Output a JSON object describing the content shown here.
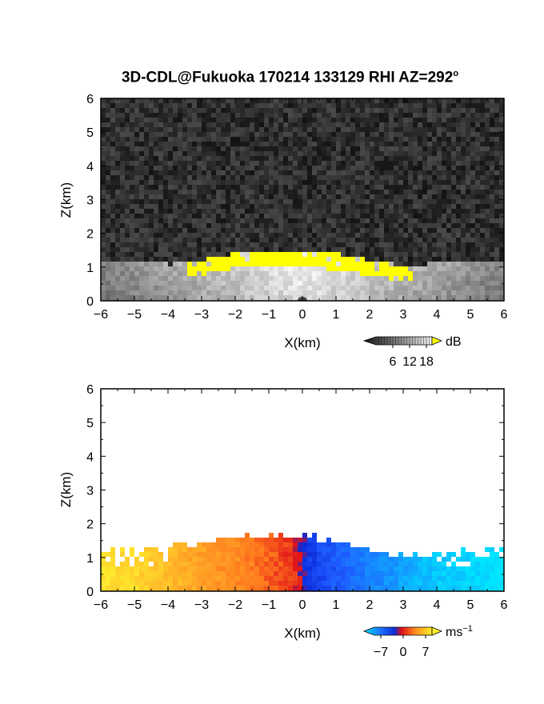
{
  "title": "3D-CDL@Fukuoka 170214 133129 RHI AZ=292",
  "title_suffix": "o",
  "chart_data": [
    {
      "type": "heatmap",
      "panel": "top",
      "quantity": "backscatter intensity",
      "xlabel": "X(km)",
      "ylabel": "Z(km)",
      "xlim": [
        -6,
        6
      ],
      "ylim": [
        0,
        6
      ],
      "x_ticks": [
        -6,
        -5,
        -4,
        -3,
        -2,
        -1,
        0,
        1,
        2,
        3,
        4,
        5,
        6
      ],
      "y_ticks": [
        0,
        1,
        2,
        3,
        4,
        5,
        6
      ],
      "colorscale": "grayscale",
      "colorbar": {
        "unit": "dB",
        "ticks": [
          6,
          12,
          18
        ],
        "range": [
          0,
          20
        ],
        "over_color": "#ffff00"
      },
      "echo_top_km": [
        {
          "x": -6,
          "z": 1.3
        },
        {
          "x": -5,
          "z": 1.25
        },
        {
          "x": -4,
          "z": 1.15
        },
        {
          "x": -3,
          "z": 1.3
        },
        {
          "x": -2,
          "z": 1.5
        },
        {
          "x": -1,
          "z": 1.55
        },
        {
          "x": 0,
          "z": 1.5
        },
        {
          "x": 1,
          "z": 1.45
        },
        {
          "x": 2,
          "z": 1.25
        },
        {
          "x": 3,
          "z": 1.1
        },
        {
          "x": 4,
          "z": 1.2
        },
        {
          "x": 5,
          "z": 1.3
        },
        {
          "x": 6,
          "z": 1.3
        }
      ],
      "saturated_layer_km": {
        "x_range": [
          -3.5,
          3.2
        ],
        "z_range": [
          0.9,
          1.6
        ],
        "value": ">18"
      }
    },
    {
      "type": "heatmap",
      "panel": "bottom",
      "quantity": "radial velocity",
      "xlabel": "X(km)",
      "ylabel": "Z(km)",
      "xlim": [
        -6,
        6
      ],
      "ylim": [
        0,
        6
      ],
      "x_ticks": [
        -6,
        -5,
        -4,
        -3,
        -2,
        -1,
        0,
        1,
        2,
        3,
        4,
        5,
        6
      ],
      "y_ticks": [
        0,
        1,
        2,
        3,
        4,
        5,
        6
      ],
      "colorscale": "diverging blue-red-yellow",
      "colorbar": {
        "unit": "ms",
        "unit_exp": "−1",
        "ticks": [
          -7,
          0,
          7
        ],
        "range": [
          -9,
          9
        ]
      },
      "velocity_profile": [
        {
          "x": -6,
          "v": 8.5
        },
        {
          "x": -5,
          "v": 8
        },
        {
          "x": -4,
          "v": 6.5
        },
        {
          "x": -3,
          "v": 5
        },
        {
          "x": -2,
          "v": 4
        },
        {
          "x": -1,
          "v": 2.5
        },
        {
          "x": -0.2,
          "v": 1
        },
        {
          "x": 0.2,
          "v": -1.5
        },
        {
          "x": 1,
          "v": -3
        },
        {
          "x": 2,
          "v": -5
        },
        {
          "x": 3,
          "v": -6.5
        },
        {
          "x": 4,
          "v": -8
        },
        {
          "x": 6,
          "v": -9
        }
      ],
      "echo_top_km": [
        {
          "x": -6,
          "z": 1.25
        },
        {
          "x": -5,
          "z": 1.2
        },
        {
          "x": -4,
          "z": 1.3
        },
        {
          "x": -3,
          "z": 1.45
        },
        {
          "x": -2,
          "z": 1.6
        },
        {
          "x": -1,
          "z": 1.6
        },
        {
          "x": 0,
          "z": 1.65
        },
        {
          "x": 1,
          "z": 1.45
        },
        {
          "x": 2,
          "z": 1.25
        },
        {
          "x": 3,
          "z": 1.05
        },
        {
          "x": 4,
          "z": 1.15
        },
        {
          "x": 5,
          "z": 1.25
        },
        {
          "x": 6,
          "z": 1.3
        }
      ]
    }
  ]
}
